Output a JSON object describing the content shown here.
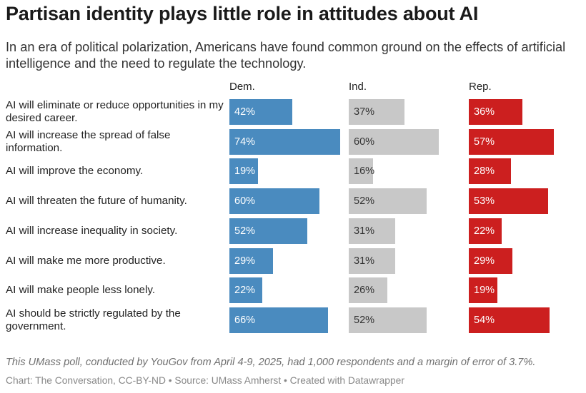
{
  "title": "Partisan identity plays little role in attitudes about AI",
  "subtitle": "In an era of political polarization, Americans have found common ground on the effects of artificial intelligence and the need to regulate the technology.",
  "note": "This UMass poll, conducted by YouGov from April 4-9, 2025, had 1,000 respondents and a margin of error of 3.7%.",
  "source": "Chart: The Conversation, CC-BY-ND • Source: UMass Amherst • Created with Datawrapper",
  "colors": {
    "dem": "#4a8bbf",
    "ind": "#c8c8c8",
    "rep": "#cc1f1f"
  },
  "chart_data": {
    "type": "bar",
    "orientation": "horizontal",
    "layout": "split-bars by group",
    "value_suffix": "%",
    "xlim": [
      0,
      74
    ],
    "categories": [
      "AI will eliminate or reduce opportunities in my desired career.",
      "AI will increase the spread of false information.",
      "AI will improve the economy.",
      "AI will threaten the future of humanity.",
      "AI will increase inequality in society.",
      "AI will make me more productive.",
      "AI will make people less lonely.",
      "AI should be strictly regulated by the government."
    ],
    "series": [
      {
        "name": "Dem.",
        "values": [
          42,
          74,
          19,
          60,
          52,
          29,
          22,
          66
        ]
      },
      {
        "name": "Ind.",
        "values": [
          37,
          60,
          16,
          52,
          31,
          31,
          26,
          52
        ]
      },
      {
        "name": "Rep.",
        "values": [
          36,
          57,
          28,
          53,
          22,
          29,
          19,
          54
        ]
      }
    ]
  }
}
